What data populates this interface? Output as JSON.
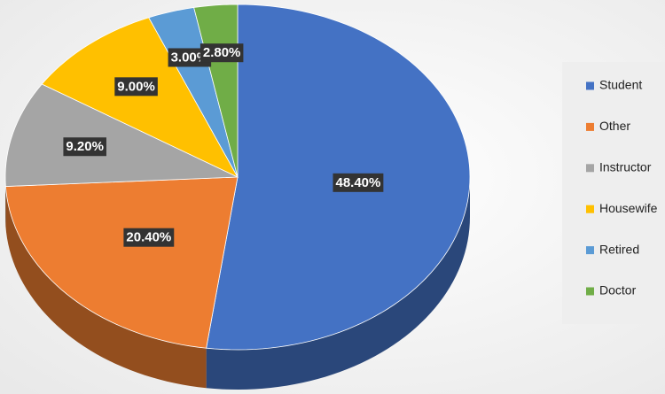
{
  "chart_data": {
    "type": "pie3d",
    "categories": [
      "Student",
      "Other",
      "Instructor",
      "Housewife",
      "Retired",
      "Doctor"
    ],
    "values": [
      48.4,
      20.4,
      9.2,
      9.0,
      3.0,
      2.8
    ],
    "value_labels": [
      "48.40%",
      "20.40%",
      "9.20%",
      "9.00%",
      "3.00%",
      "2.80%"
    ],
    "colors": [
      "#4472c4",
      "#ed7d31",
      "#a5a5a5",
      "#ffc000",
      "#5b9bd5",
      "#70ad47"
    ],
    "legend": "right"
  }
}
